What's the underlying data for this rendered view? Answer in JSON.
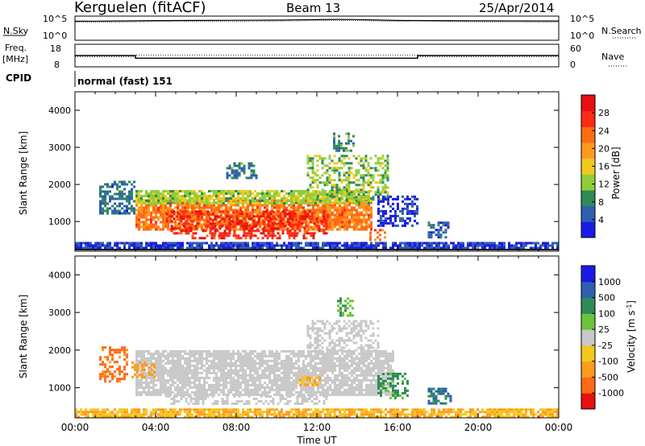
{
  "header": {
    "station": "Kerguelen (fitACF)",
    "beam": "Beam 13",
    "date": "25/Apr/2014"
  },
  "nsky_panel": {
    "left_label": "N.Sky",
    "left_ticks": [
      "10^5",
      "10^0"
    ],
    "right_ticks": [
      "10^5",
      "10^0"
    ],
    "right_label": "N.Search"
  },
  "freq_panel": {
    "left_label_1": "Freq.",
    "left_label_2": "[MHz]",
    "left_ticks": [
      "18",
      "8"
    ],
    "right_ticks": [
      "60",
      "0"
    ],
    "right_label": "Nave",
    "cpid_label": "CPID",
    "mode": "normal (fast) 151"
  },
  "colors": {
    "velocity_ground": "#bdbdbd",
    "power_scale": [
      "#1a1ae6",
      "#2f5fb0",
      "#2e8b57",
      "#8fce3a",
      "#f2c81e",
      "#ff9a1f",
      "#ff6a14",
      "#ff2a14",
      "#e61010"
    ],
    "velocity_scale": [
      "#1a1ae6",
      "#2f5fb0",
      "#2e8b57",
      "#6cc43a",
      "#c8c8c8",
      "#f2c81e",
      "#ff9a1f",
      "#ff6a14",
      "#e61010"
    ]
  },
  "chart_data": [
    {
      "type": "line",
      "name": "nsky-nsearch",
      "xlabel": "",
      "ylabel": "",
      "yscale": "log",
      "ylim": [
        1,
        100000
      ],
      "x_hours": [
        0,
        1,
        2,
        3,
        4,
        6,
        8,
        10,
        11,
        12,
        13,
        14,
        15,
        16,
        18,
        20,
        22,
        24
      ],
      "series": [
        {
          "values": [
            14000,
            15000,
            16000,
            18000,
            20000,
            22000,
            24000,
            26000,
            30000,
            35000,
            40000,
            36000,
            28000,
            22000,
            20000,
            18000,
            17000,
            16000
          ]
        }
      ]
    },
    {
      "type": "line",
      "name": "frequency-nave",
      "yscale": "linear",
      "ylim": [
        8,
        18
      ],
      "y2lim": [
        0,
        60
      ],
      "x_hours": [
        0,
        3,
        3,
        17,
        17,
        24
      ],
      "series": [
        {
          "values": [
            13.2,
            13.2,
            11.8,
            11.8,
            13.2,
            13.2
          ]
        },
        {
          "values": [
            28,
            28,
            33,
            33,
            28,
            28
          ]
        }
      ]
    },
    {
      "type": "heatmap",
      "name": "power",
      "ylabel": "Slant Range [km]",
      "xlim": [
        0,
        24
      ],
      "ylim": [
        200,
        4500
      ],
      "y_ticks": [
        "1000",
        "2000",
        "3000",
        "4000"
      ],
      "colorbar_label": "Power [dB]",
      "colorbar_ticks": [
        "4",
        "8",
        "12",
        "16",
        "20",
        "24",
        "28"
      ],
      "regions": [
        {
          "x0": 3.0,
          "x1": 14.7,
          "y0": 800,
          "y1": 1600,
          "value": 22
        },
        {
          "x0": 4.5,
          "x1": 12.5,
          "y0": 700,
          "y1": 1300,
          "value": 27
        },
        {
          "x0": 5.3,
          "x1": 11.8,
          "y0": 550,
          "y1": 650,
          "value": 26
        },
        {
          "x0": 3.0,
          "x1": 14.7,
          "y0": 1500,
          "y1": 1850,
          "value": 14
        },
        {
          "x0": 1.2,
          "x1": 3.0,
          "y0": 1200,
          "y1": 2100,
          "value": 8
        },
        {
          "x0": 11.5,
          "x1": 15.5,
          "y0": 1600,
          "y1": 2800,
          "value": 13
        },
        {
          "x0": 12.8,
          "x1": 13.8,
          "y0": 2900,
          "y1": 3400,
          "value": 10
        },
        {
          "x0": 14.6,
          "x1": 15.4,
          "y0": 500,
          "y1": 800,
          "value": 22
        },
        {
          "x0": 15.0,
          "x1": 17.0,
          "y0": 900,
          "y1": 1700,
          "value": 5
        },
        {
          "x0": 17.5,
          "x1": 18.5,
          "y0": 600,
          "y1": 1000,
          "value": 7
        },
        {
          "x0": 0.0,
          "x1": 24.0,
          "y0": 300,
          "y1": 450,
          "value": 5
        },
        {
          "x0": 7.5,
          "x1": 9.0,
          "y0": 2200,
          "y1": 2600,
          "value": 9
        }
      ]
    },
    {
      "type": "heatmap",
      "name": "velocity",
      "ylabel": "Slant Range [km]",
      "xlabel": "Time UT",
      "xlim": [
        0,
        24
      ],
      "x_ticks": [
        "00:00",
        "04:00",
        "08:00",
        "12:00",
        "16:00",
        "20:00",
        "00:00"
      ],
      "ylim": [
        200,
        4500
      ],
      "y_ticks": [
        "1000",
        "2000",
        "3000",
        "4000"
      ],
      "colorbar_label": "Velocity [m s^-1]",
      "colorbar_ticks": [
        "1000",
        "500",
        "100",
        "25",
        "-25",
        "-100",
        "-500",
        "-1000"
      ],
      "regions": [
        {
          "x0": 3.0,
          "x1": 15.8,
          "y0": 800,
          "y1": 2000,
          "value": 0
        },
        {
          "x0": 4.5,
          "x1": 12.5,
          "y0": 550,
          "y1": 800,
          "value": 0
        },
        {
          "x0": 1.2,
          "x1": 2.6,
          "y0": 1200,
          "y1": 2100,
          "value": -400
        },
        {
          "x0": 0.0,
          "x1": 24.0,
          "y0": 250,
          "y1": 450,
          "value": -60
        },
        {
          "x0": 11.5,
          "x1": 15.0,
          "y0": 2000,
          "y1": 2800,
          "value": 0
        },
        {
          "x0": 13.0,
          "x1": 13.8,
          "y0": 2900,
          "y1": 3400,
          "value": 60
        },
        {
          "x0": 15.0,
          "x1": 16.5,
          "y0": 700,
          "y1": 1400,
          "value": 80
        },
        {
          "x0": 17.5,
          "x1": 18.6,
          "y0": 600,
          "y1": 1000,
          "value": 300
        },
        {
          "x0": 2.8,
          "x1": 4.0,
          "y0": 1300,
          "y1": 1700,
          "value": -100
        },
        {
          "x0": 11.0,
          "x1": 12.2,
          "y0": 1100,
          "y1": 1300,
          "value": -60
        }
      ]
    }
  ]
}
